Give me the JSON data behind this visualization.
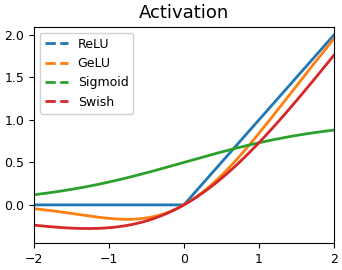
{
  "title": "Activation",
  "title_fontsize": 13,
  "xlim": [
    -2,
    2
  ],
  "ylim": [
    -0.45,
    2.1
  ],
  "xticks": [
    -2,
    -1,
    0,
    1,
    2
  ],
  "yticks": [
    0.0,
    0.5,
    1.0,
    1.5,
    2.0
  ],
  "lines": [
    {
      "label": "ReLU",
      "color": "#1f77b4",
      "linestyle": "-",
      "linewidth": 2.0
    },
    {
      "label": "GeLU",
      "color": "#ff7f0e",
      "linestyle": "-",
      "linewidth": 2.0
    },
    {
      "label": "Sigmoid",
      "color": "#2ca02c",
      "linestyle": "-",
      "linewidth": 2.0
    },
    {
      "label": "Swish",
      "color": "#d62728",
      "linestyle": "-",
      "linewidth": 2.0
    }
  ],
  "legend_loc": "upper left",
  "legend_fontsize": 9,
  "legend_dashes": "--",
  "figsize": [
    3.42,
    2.7
  ],
  "dpi": 100
}
